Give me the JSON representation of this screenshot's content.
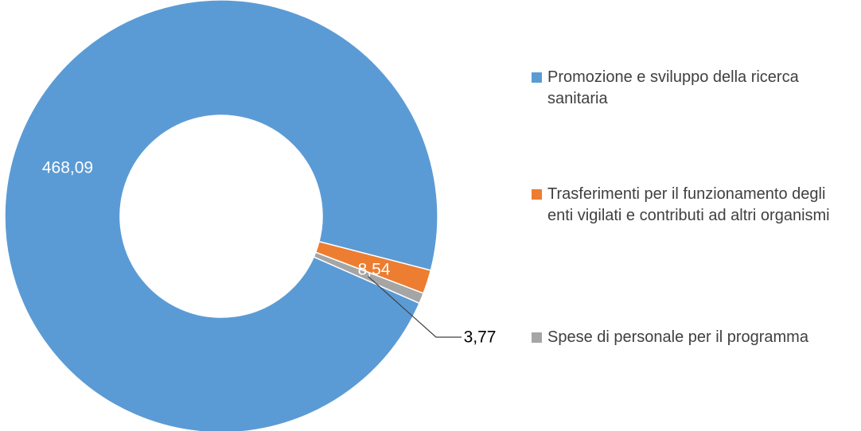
{
  "chart_data": {
    "type": "donut",
    "categories": [
      "Promozione e sviluppo della ricerca sanitaria",
      "Trasferimenti per il funzionamento degli enti vigilati e contributi ad altri organismi",
      "Spese di personale per il programma"
    ],
    "values": [
      468.09,
      8.54,
      3.77
    ],
    "value_labels": [
      "468,09",
      "8,54",
      "3,77"
    ],
    "colors": [
      "#5b9bd5",
      "#ed7d31",
      "#a5a5a5"
    ],
    "legend": "right"
  }
}
